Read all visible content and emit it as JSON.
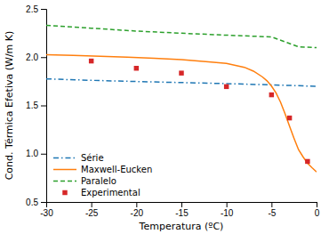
{
  "chart_data": {
    "type": "line",
    "xlabel": "Temperatura (ºC)",
    "ylabel": "Cond. Térmica Efetiva (W/m K)",
    "xlim": [
      -30,
      0
    ],
    "ylim": [
      0.5,
      2.5
    ],
    "xticks": [
      -30,
      -25,
      -20,
      -15,
      -10,
      -5,
      0
    ],
    "yticks": [
      0.5,
      {
        "value": 1.0,
        "label": "1.0"
      },
      1.5,
      {
        "value": 2.0,
        "label": "2.0"
      },
      2.5
    ],
    "grid": false,
    "legend": "lower left",
    "series": [
      {
        "name": "Série",
        "line_style": "dashdot",
        "x": [
          -30,
          -25,
          -20,
          -15,
          -10,
          -5,
          -2,
          0
        ],
        "values": [
          1.775,
          1.76,
          1.748,
          1.737,
          1.726,
          1.713,
          1.704,
          1.698
        ]
      },
      {
        "name": "Maxwell-Eucken",
        "line_style": "solid",
        "x": [
          -30,
          -27,
          -24,
          -21,
          -18,
          -15,
          -12,
          -10,
          -8,
          -7,
          -6,
          -5.5,
          -5,
          -4.5,
          -4,
          -3.5,
          -3,
          -2.5,
          -2,
          -1.5,
          -1,
          -0.5,
          0
        ],
        "values": [
          2.025,
          2.018,
          2.01,
          2.0,
          1.988,
          1.974,
          1.952,
          1.935,
          1.895,
          1.855,
          1.795,
          1.755,
          1.7,
          1.63,
          1.535,
          1.415,
          1.285,
          1.16,
          1.042,
          0.968,
          0.9,
          0.855,
          0.812
        ]
      },
      {
        "name": "Paralelo",
        "line_style": "dashed",
        "x": [
          -30,
          -25,
          -20,
          -15,
          -10,
          -5,
          -2,
          0
        ],
        "values": [
          2.33,
          2.3,
          2.27,
          2.248,
          2.228,
          2.21,
          2.108,
          2.098
        ]
      },
      {
        "name": "Experimental",
        "type": "scatter",
        "marker": "square",
        "x": [
          -25,
          -20,
          -15,
          -10,
          -5,
          -3,
          -1
        ],
        "values": [
          1.96,
          1.885,
          1.835,
          1.695,
          1.61,
          1.37,
          0.92
        ]
      }
    ]
  }
}
